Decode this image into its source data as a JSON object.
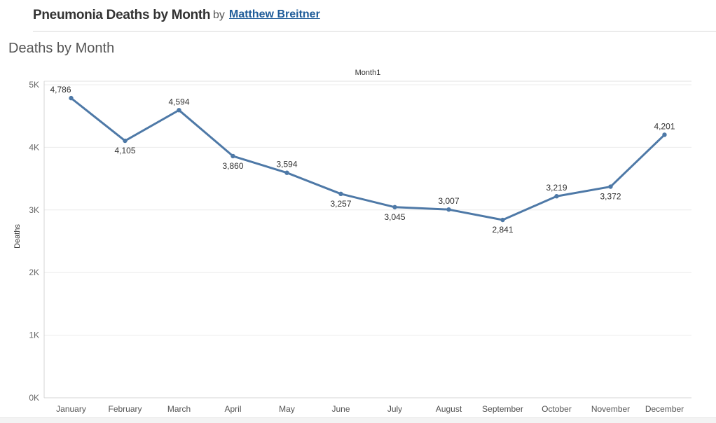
{
  "header": {
    "title": "Pneumonia Deaths by Month",
    "by": "by",
    "author": "Matthew Breitner"
  },
  "sheet_title": "Deaths by Month",
  "chart_data": {
    "type": "line",
    "title": "Deaths by Month",
    "column_header": "Month1",
    "xlabel": "",
    "ylabel": "Deaths",
    "categories": [
      "January",
      "February",
      "March",
      "April",
      "May",
      "June",
      "July",
      "August",
      "September",
      "October",
      "November",
      "December"
    ],
    "series": [
      {
        "values": [
          4786,
          4105,
          4594,
          3860,
          3594,
          3257,
          3045,
          3007,
          2841,
          3219,
          3372,
          4201
        ],
        "labels": [
          "4,786",
          "4,105",
          "4,594",
          "3,860",
          "3,594",
          "3,257",
          "3,045",
          "3,007",
          "2,841",
          "3,219",
          "3,372",
          "4,201"
        ],
        "color": "#4e79a7"
      }
    ],
    "ylim": [
      0,
      5000
    ],
    "yticks": [
      0,
      1000,
      2000,
      3000,
      4000,
      5000
    ],
    "ytick_labels": [
      "0K",
      "1K",
      "2K",
      "3K",
      "4K",
      "5K"
    ],
    "grid": true,
    "legend": "none"
  }
}
